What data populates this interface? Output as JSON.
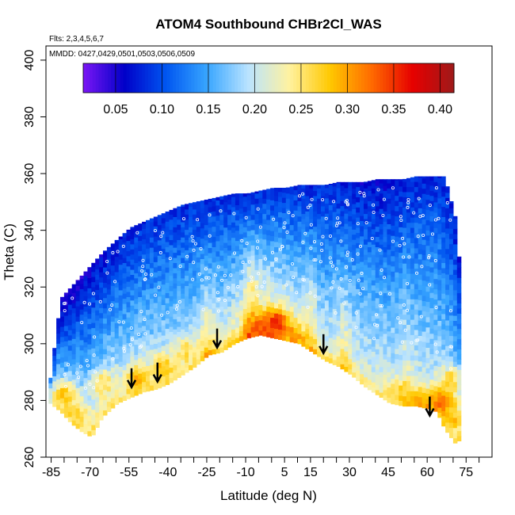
{
  "chart_data": {
    "type": "heatmap",
    "title": "ATOM4 Southbound CHBr2Cl_WAS",
    "flights_label": "Flts: 2,3,4,5,6,7",
    "dates_label": "MMDD: 0427,0429,0501,0503,0506,0509",
    "xlabel": "Latitude (deg N)",
    "ylabel": "Theta (C)",
    "xlim": [
      -87,
      85
    ],
    "ylim": [
      260,
      405
    ],
    "x_ticks": [
      -85,
      -70,
      -55,
      -40,
      -25,
      -10,
      5,
      15,
      30,
      45,
      60,
      75
    ],
    "x_minor_ticks": [
      -80,
      -75,
      -65,
      -60,
      -50,
      -45,
      -35,
      -30,
      -20,
      -15,
      -5,
      0,
      10,
      20,
      25,
      35,
      40,
      50,
      55,
      65,
      70,
      80
    ],
    "y_ticks": [
      260,
      280,
      300,
      320,
      340,
      360,
      380,
      400
    ],
    "colorbar": {
      "min": 0.015,
      "max": 0.415,
      "ticks": [
        0.05,
        0.1,
        0.15,
        0.2,
        0.25,
        0.3,
        0.35,
        0.4
      ],
      "tick_labels": [
        "0.05",
        "0.10",
        "0.15",
        "0.20",
        "0.25",
        "0.30",
        "0.35",
        "0.40"
      ],
      "colors": [
        "#7b16f5",
        "#0000c8",
        "#0055f0",
        "#37a5ff",
        "#b9e3ff",
        "#fff2a0",
        "#ffc800",
        "#ff6a00",
        "#e60000",
        "#9e1a1a"
      ]
    },
    "lat_bounds": [
      {
        "lat": -86,
        "low": 279,
        "high": 288
      },
      {
        "lat": -82,
        "low": 276,
        "high": 316
      },
      {
        "lat": -78,
        "low": 272,
        "high": 320
      },
      {
        "lat": -74,
        "low": 269,
        "high": 324
      },
      {
        "lat": -70,
        "low": 267,
        "high": 328
      },
      {
        "lat": -66,
        "low": 274,
        "high": 332
      },
      {
        "lat": -60,
        "low": 279,
        "high": 337
      },
      {
        "lat": -55,
        "low": 281,
        "high": 341
      },
      {
        "lat": -50,
        "low": 283,
        "high": 343
      },
      {
        "lat": -45,
        "low": 284,
        "high": 345
      },
      {
        "lat": -40,
        "low": 286,
        "high": 347
      },
      {
        "lat": -35,
        "low": 289,
        "high": 349
      },
      {
        "lat": -30,
        "low": 292,
        "high": 350
      },
      {
        "lat": -25,
        "low": 296,
        "high": 351
      },
      {
        "lat": -20,
        "low": 297,
        "high": 352
      },
      {
        "lat": -15,
        "low": 300,
        "high": 353
      },
      {
        "lat": -10,
        "low": 302,
        "high": 353
      },
      {
        "lat": -5,
        "low": 303,
        "high": 354
      },
      {
        "lat": 0,
        "low": 302,
        "high": 355
      },
      {
        "lat": 5,
        "low": 301,
        "high": 355
      },
      {
        "lat": 10,
        "low": 300,
        "high": 356
      },
      {
        "lat": 15,
        "low": 297,
        "high": 356
      },
      {
        "lat": 20,
        "low": 294,
        "high": 356
      },
      {
        "lat": 25,
        "low": 292,
        "high": 357
      },
      {
        "lat": 30,
        "low": 289,
        "high": 357
      },
      {
        "lat": 35,
        "low": 285,
        "high": 357
      },
      {
        "lat": 40,
        "low": 282,
        "high": 358
      },
      {
        "lat": 45,
        "low": 279,
        "high": 358
      },
      {
        "lat": 50,
        "low": 278,
        "high": 358
      },
      {
        "lat": 55,
        "low": 278,
        "high": 359
      },
      {
        "lat": 60,
        "low": 277,
        "high": 359
      },
      {
        "lat": 63,
        "low": 276,
        "high": 359
      },
      {
        "lat": 66,
        "low": 270,
        "high": 359
      },
      {
        "lat": 70,
        "low": 265,
        "high": 345
      },
      {
        "lat": 72,
        "low": 266,
        "high": 326
      }
    ],
    "hotspots": [
      {
        "lat": -80,
        "theta": 282,
        "value": 0.28
      },
      {
        "lat": -75,
        "theta": 275,
        "value": 0.27
      },
      {
        "lat": -70,
        "theta": 271,
        "value": 0.25
      },
      {
        "lat": -65,
        "theta": 286,
        "value": 0.26
      },
      {
        "lat": -52,
        "theta": 288,
        "value": 0.29
      },
      {
        "lat": -42,
        "theta": 292,
        "value": 0.28
      },
      {
        "lat": -33,
        "theta": 298,
        "value": 0.26
      },
      {
        "lat": -4,
        "theta": 305,
        "value": 0.33
      },
      {
        "lat": 2,
        "theta": 307,
        "value": 0.37
      },
      {
        "lat": 8,
        "theta": 302,
        "value": 0.32
      },
      {
        "lat": 5,
        "theta": 297,
        "value": 0.25
      },
      {
        "lat": 50,
        "theta": 282,
        "value": 0.27
      },
      {
        "lat": 58,
        "theta": 279,
        "value": 0.3
      },
      {
        "lat": 66,
        "theta": 280,
        "value": 0.34
      },
      {
        "lat": 69,
        "theta": 274,
        "value": 0.29
      },
      {
        "lat": 69,
        "theta": 287,
        "value": 0.27
      }
    ],
    "arrows": [
      {
        "lat": -54,
        "theta": 288
      },
      {
        "lat": -44,
        "theta": 290
      },
      {
        "lat": -21,
        "theta": 302
      },
      {
        "lat": 20,
        "theta": 300
      },
      {
        "lat": 61,
        "theta": 278
      }
    ]
  }
}
